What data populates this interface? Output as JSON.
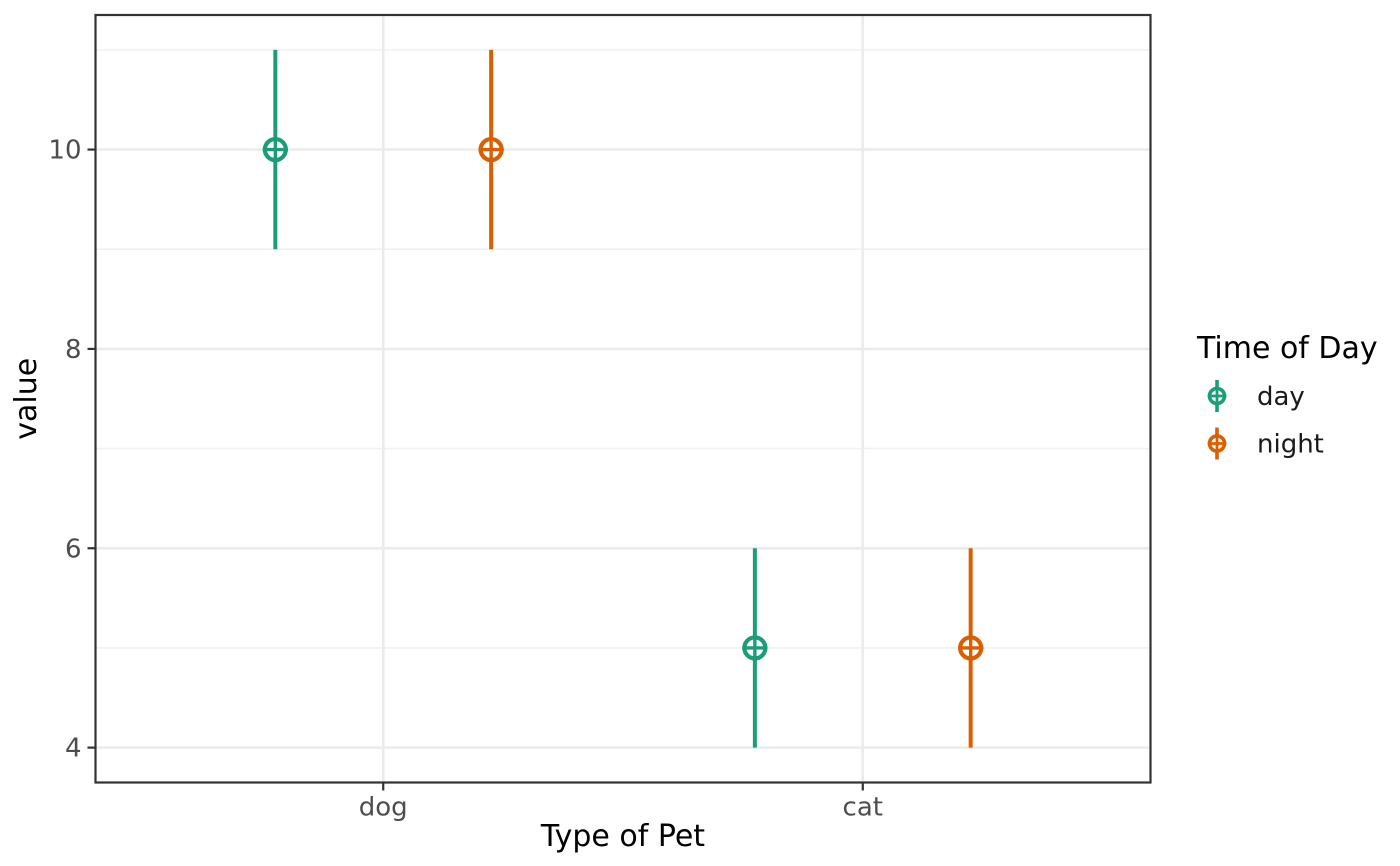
{
  "chart_data": {
    "type": "pointrange",
    "title": "",
    "xlabel": "Type of Pet",
    "ylabel": "value",
    "categories": [
      "dog",
      "cat"
    ],
    "series": [
      {
        "name": "day",
        "color": "#1B9E77",
        "points": [
          {
            "category": "dog",
            "y": 10,
            "ymin": 9,
            "ymax": 11
          },
          {
            "category": "cat",
            "y": 5,
            "ymin": 4,
            "ymax": 6
          }
        ]
      },
      {
        "name": "night",
        "color": "#D95F02",
        "points": [
          {
            "category": "dog",
            "y": 10,
            "ymin": 9,
            "ymax": 11
          },
          {
            "category": "cat",
            "y": 5,
            "ymin": 4,
            "ymax": 6
          }
        ]
      }
    ],
    "y_axis": {
      "major_ticks": [
        4,
        6,
        8,
        10
      ],
      "minor_ticks": [
        5,
        7,
        9,
        11
      ],
      "limits": [
        3.65,
        11.35
      ],
      "tick_labels": [
        "4",
        "6",
        "8",
        "10"
      ]
    },
    "x_axis": {
      "tick_labels": [
        "dog",
        "cat"
      ],
      "limits": [
        0.4,
        2.6
      ]
    },
    "dodge_offset": 0.225,
    "legend": {
      "title": "Time of Day",
      "position": "right",
      "items": [
        "day",
        "night"
      ]
    },
    "grid": true
  },
  "styles": {
    "background": "#FFFFFF",
    "panel_background": "#FFFFFF",
    "grid_major_color": "#EBEBEB",
    "grid_minor_color": "#F1F1F1",
    "panel_border_color": "#333333",
    "tick_mark_color": "#333333",
    "tick_label_color": "#4D4D4D",
    "axis_title_color": "#000000",
    "legend_title_color": "#000000",
    "legend_label_color": "#1A1A1A",
    "day_color": "#1B9E77",
    "night_color": "#D95F02"
  }
}
